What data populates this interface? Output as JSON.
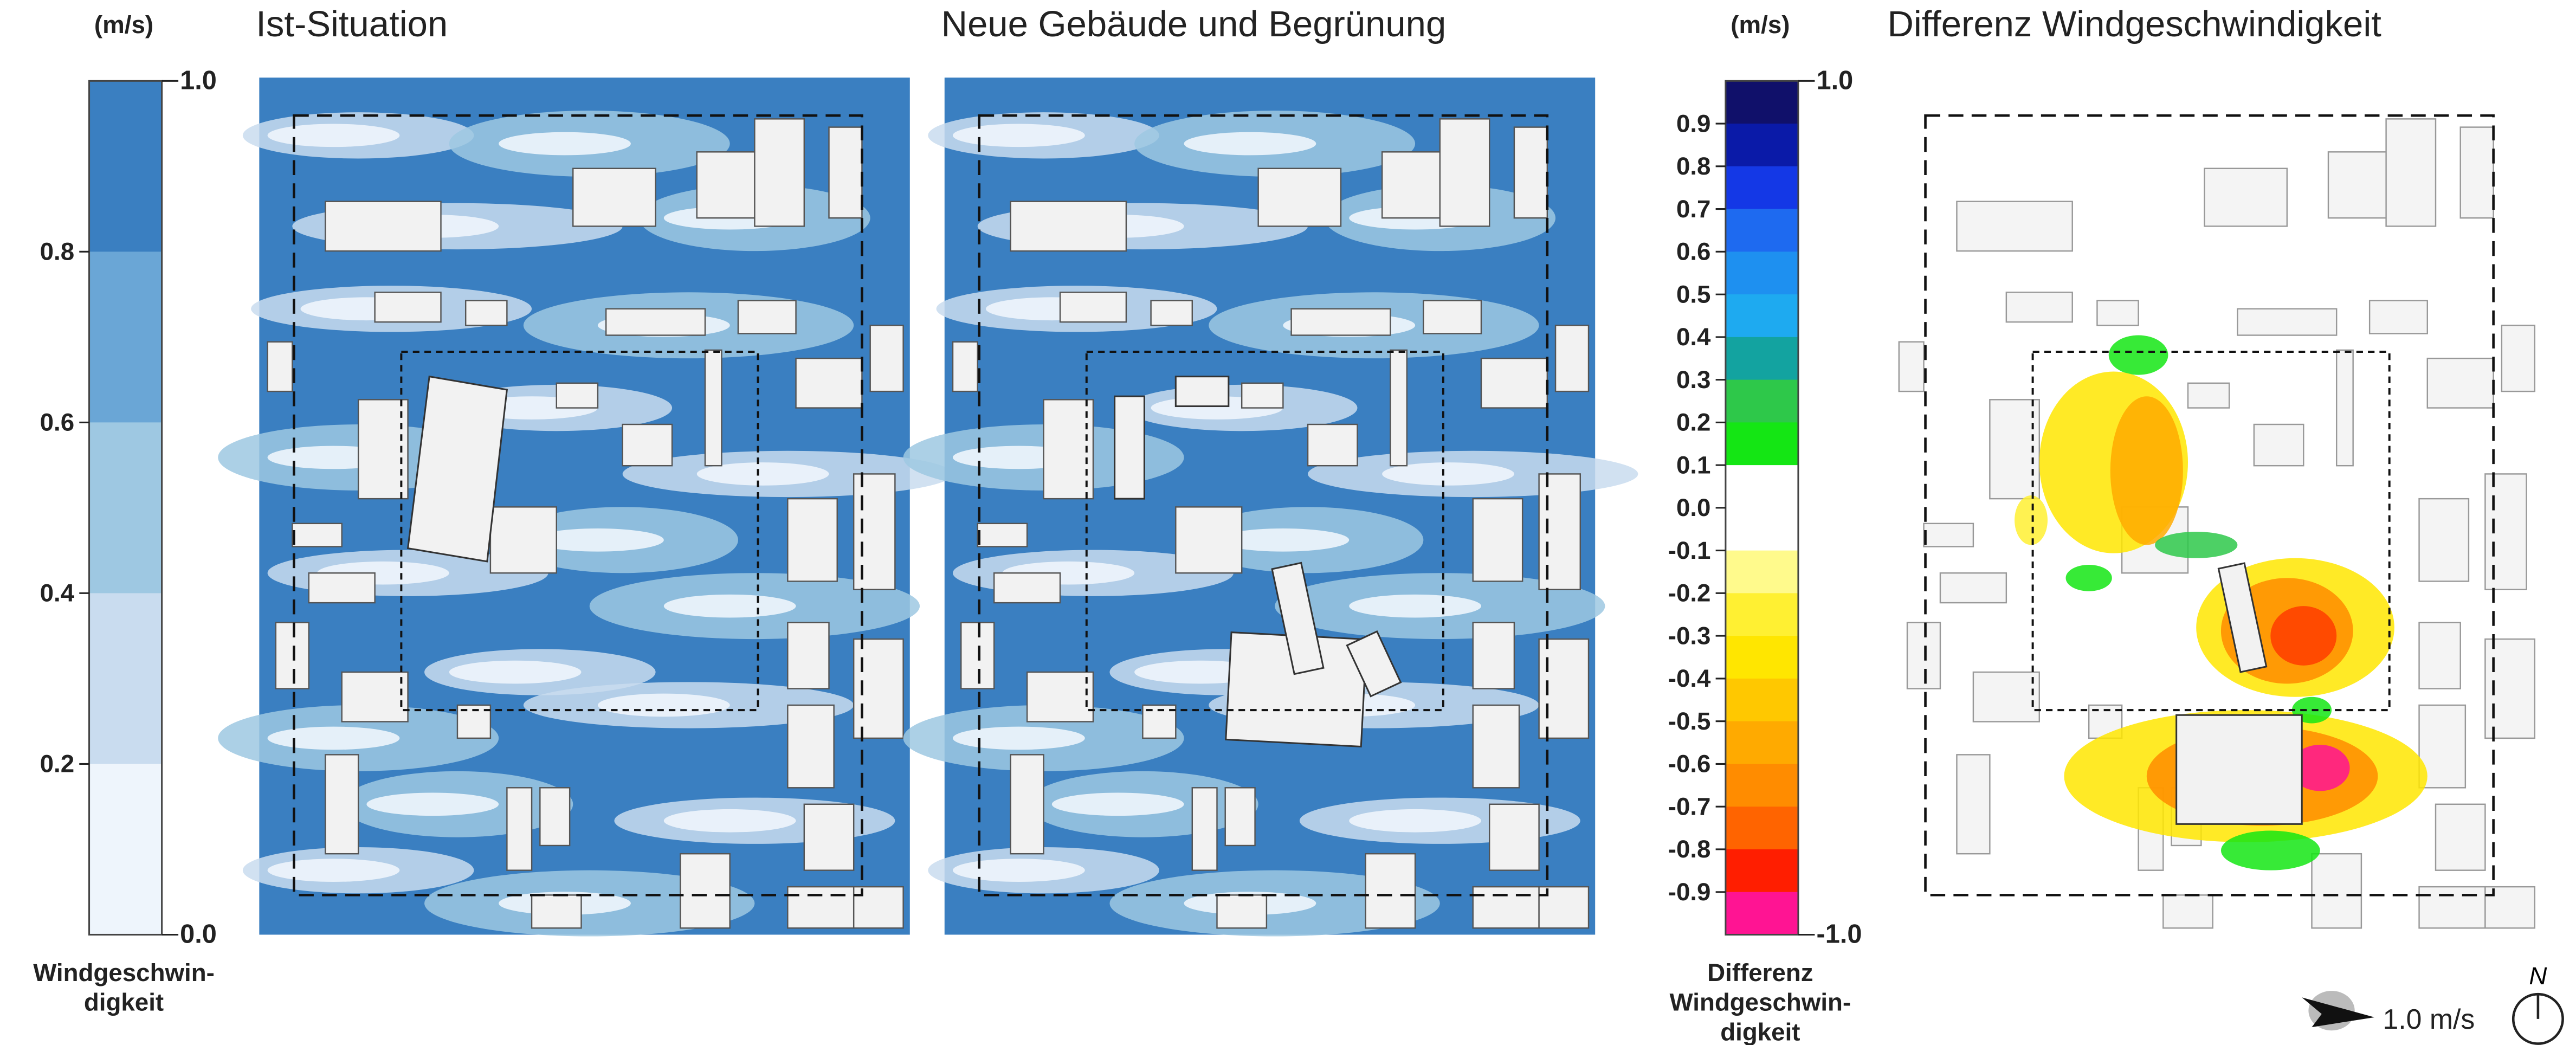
{
  "left_legend": {
    "unit": "(m/s)",
    "ticks": [
      {
        "value": 1.0,
        "label": "1.0"
      },
      0.8,
      0.6,
      0.4,
      0.2,
      {
        "value": 0,
        "label": "0.0"
      }
    ],
    "colors": [
      "#3a7fc1",
      "#6aa6d6",
      "#9ec8e2",
      "#c9dcef",
      "#eef5fc"
    ],
    "caption": [
      "Windgeschwin-",
      "digkeit"
    ]
  },
  "panels": [
    {
      "title": "Ist-Situation"
    },
    {
      "title": "Neue Gebäude und Begrünung"
    },
    {
      "title": "Differenz Windgeschwindigkeit"
    }
  ],
  "right_legend": {
    "unit": "(m/s)",
    "ticks": [
      {
        "value": 1.0,
        "label": "1.0"
      },
      0.9,
      0.8,
      0.7,
      0.6,
      0.5,
      0.4,
      0.3,
      0.2,
      0.1,
      {
        "value": 0,
        "label": "0.0"
      },
      -0.1,
      -0.2,
      -0.3,
      -0.4,
      -0.5,
      -0.6,
      -0.7,
      -0.8,
      -0.9,
      {
        "value": -1.0,
        "label": "-1.0"
      }
    ],
    "colors": [
      "#10106a",
      "#0a1aa8",
      "#1438e6",
      "#1e6af0",
      "#1e90f0",
      "#1eaaf0",
      "#13a3a0",
      "#2ec84a",
      "#14e614",
      "#ffffff",
      "#ffffff",
      "#fffa8c",
      "#fff032",
      "#ffe600",
      "#ffc800",
      "#ffaa00",
      "#ff8c00",
      "#ff6400",
      "#ff1e00",
      "#ff1493"
    ],
    "caption": [
      "Differenz",
      "Windgeschwin-",
      "digkeit"
    ]
  },
  "scale_label": "1.0 m/s",
  "north": "N"
}
